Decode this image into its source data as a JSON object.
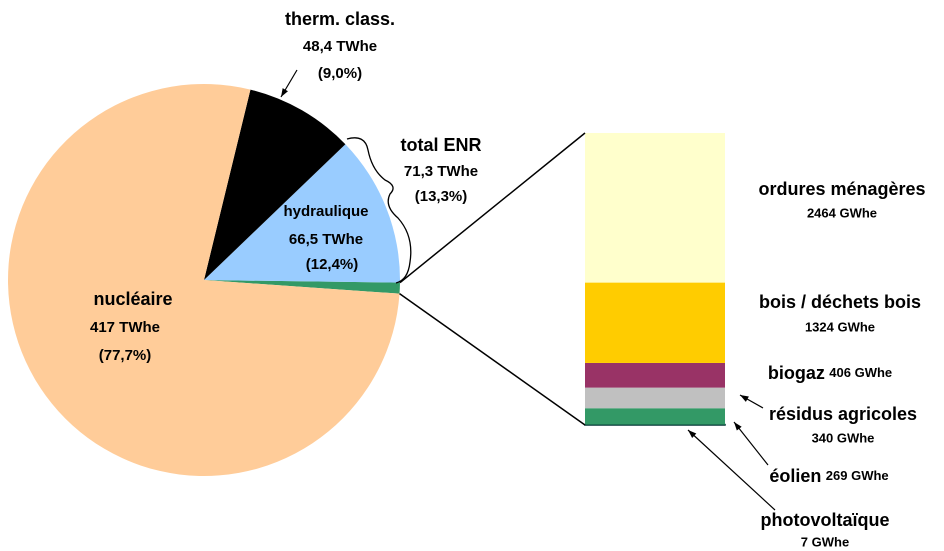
{
  "chart_data": [
    {
      "type": "pie",
      "categories": [
        "nucléaire",
        "therm. class.",
        "hydraulique",
        null
      ],
      "values": [
        417,
        48.4,
        66.5,
        4.81
      ],
      "value_labels": [
        "417 TWhe",
        "48,4 TWhe",
        "66,5 TWhe",
        null
      ],
      "percent_labels": [
        "(77,7%)",
        "(9,0%)",
        "(12,4%)",
        null
      ],
      "colors": [
        "#ffcc99",
        "#000000",
        "#99ccff",
        "#339966"
      ],
      "annotations": [
        {
          "label": "total ENR",
          "value": 71.3,
          "value_label": "71,3 TWhe",
          "percent_label": "(13,3%)"
        }
      ]
    },
    {
      "type": "stacked-bar",
      "categories": [
        "ordures ménagères",
        "bois / déchets bois",
        "biogaz",
        "résidus agricoles",
        "éolien",
        "photovoltaïque"
      ],
      "values": [
        2464,
        1324,
        406,
        340,
        269,
        7
      ],
      "value_labels": [
        "2464 GWhe",
        "1324 GWhe",
        "406 GWhe",
        "340 GWhe",
        "269 GWhe",
        "7 GWhe"
      ],
      "colors": [
        "#ffffcc",
        "#ffcc00",
        "#993366",
        "#c0c0c0",
        "#339966",
        "#003333"
      ]
    }
  ]
}
